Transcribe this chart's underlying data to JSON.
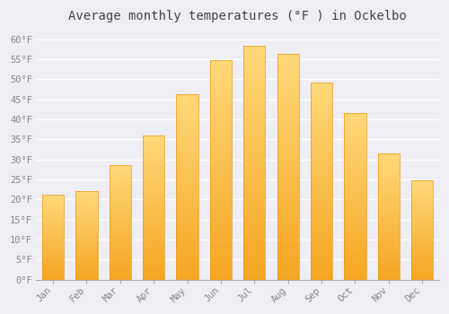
{
  "title": "Average monthly temperatures (°F ) in Ockelbo",
  "months": [
    "Jan",
    "Feb",
    "Mar",
    "Apr",
    "May",
    "Jun",
    "Jul",
    "Aug",
    "Sep",
    "Oct",
    "Nov",
    "Dec"
  ],
  "values": [
    21.2,
    22.0,
    28.5,
    36.0,
    46.2,
    54.8,
    58.3,
    56.3,
    49.3,
    41.5,
    31.5,
    24.7
  ],
  "bar_color_bottom": "#F5A623",
  "bar_color_top": "#FFD97A",
  "bar_edge_color": "#E8981A",
  "background_color": "#EEEEF4",
  "plot_bg_color": "#EEEEF4",
  "grid_color": "#FFFFFF",
  "ylim": [
    0,
    63
  ],
  "yticks": [
    0,
    5,
    10,
    15,
    20,
    25,
    30,
    35,
    40,
    45,
    50,
    55,
    60
  ],
  "tick_label_color": "#888888",
  "title_color": "#444444",
  "title_fontsize": 10,
  "tick_fontsize": 7.5,
  "font_family": "monospace"
}
